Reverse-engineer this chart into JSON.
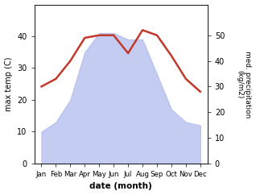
{
  "months": [
    "Jan",
    "Feb",
    "Mar",
    "Apr",
    "May",
    "Jun",
    "Jul",
    "Aug",
    "Sep",
    "Oct",
    "Nov",
    "Dec"
  ],
  "temperature": [
    10,
    13,
    20,
    35,
    41,
    41,
    39,
    39,
    28,
    17,
    13,
    12
  ],
  "precipitation": [
    30,
    33,
    40,
    49,
    50,
    50,
    43,
    52,
    50,
    42,
    33,
    28
  ],
  "temp_ylim": [
    0,
    50
  ],
  "temp_yticks": [
    0,
    10,
    20,
    30,
    40
  ],
  "precip_ylim": [
    0,
    62
  ],
  "precip_yticks": [
    0,
    10,
    20,
    30,
    40,
    50
  ],
  "fill_color": "#b0bced",
  "fill_alpha": 0.75,
  "line_color": "#c0392b",
  "line_width": 1.8,
  "xlabel": "date (month)",
  "ylabel_left": "max temp (C)",
  "ylabel_right": "med. precipitation\n(kg/m2)",
  "background_color": "#ffffff"
}
